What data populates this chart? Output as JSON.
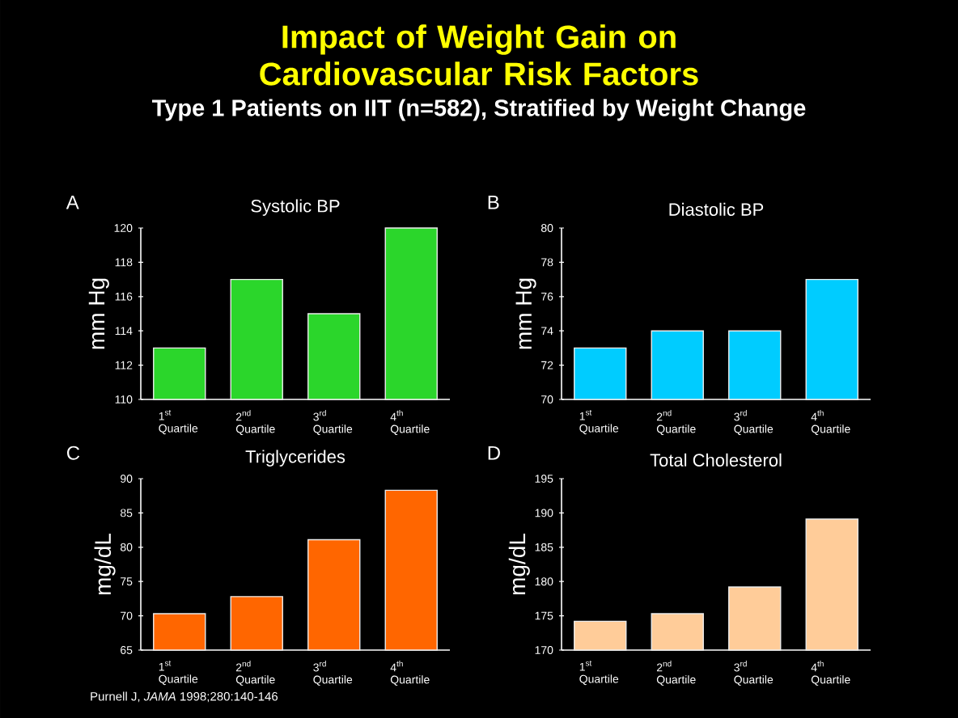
{
  "chart_data": [
    {
      "type": "other",
      "title": "Impact of Weight Gain on Cardiovascular Risk Factors",
      "subtitle": "Type 1 Patients on IIT (n=582), Stratified by Weight Change",
      "annotations": [
        "Purnell J, *JAMA* 1998;280:140-146"
      ]
    },
    {
      "type": "bar",
      "title": "Systolic BP",
      "ylabel": "mm Hg",
      "categories": [
        "1$^{st}$ Quartile",
        "2$^{nd}$ Quartile",
        "3$^{rd}$ Quartile",
        "4$^{th}$ Quartile"
      ],
      "values": [
        113,
        117,
        115,
        120
      ],
      "color": "#2bd62b",
      "ylim": [
        110,
        120
      ],
      "yticks": [
        110,
        112,
        114,
        116,
        118,
        120
      ],
      "annotations": [
        "A"
      ]
    },
    {
      "type": "bar",
      "title": "Diastolic BP",
      "ylabel": "mm Hg",
      "categories": [
        "1$^{st}$ Quartile",
        "2$^{nd}$ Quartile",
        "3$^{rd}$ Quartile",
        "4$^{th}$ Quartile"
      ],
      "values": [
        73,
        74,
        74,
        77
      ],
      "color": "#00ccff",
      "ylim": [
        70,
        80
      ],
      "yticks": [
        70,
        72,
        74,
        76,
        78,
        80
      ],
      "annotations": [
        "B"
      ]
    },
    {
      "type": "bar",
      "title": "Triglycerides",
      "ylabel": "mg/dL",
      "categories": [
        "1$^{st}$ Quartile",
        "2$^{nd}$ Quartile",
        "3$^{rd}$ Quartile",
        "4$^{th}$ Quartile"
      ],
      "values": [
        70.3,
        72.8,
        81.1,
        88.3
      ],
      "color": "#ff6600",
      "ylim": [
        65,
        90
      ],
      "yticks": [
        65,
        70,
        75,
        80,
        85,
        90
      ],
      "annotations": [
        "C"
      ]
    },
    {
      "type": "bar",
      "title": "Total Cholesterol",
      "ylabel": "mg/dL",
      "categories": [
        "1$^{st}$ Quartile",
        "2$^{nd}$ Quartile",
        "3$^{rd}$ Quartile",
        "4$^{th}$ Quartile"
      ],
      "values": [
        174.2,
        175.3,
        179.2,
        189.1
      ],
      "color": "#ffcc99",
      "ylim": [
        170,
        195
      ],
      "yticks": [
        170,
        175,
        180,
        185,
        190,
        195
      ],
      "annotations": [
        "D"
      ]
    }
  ]
}
